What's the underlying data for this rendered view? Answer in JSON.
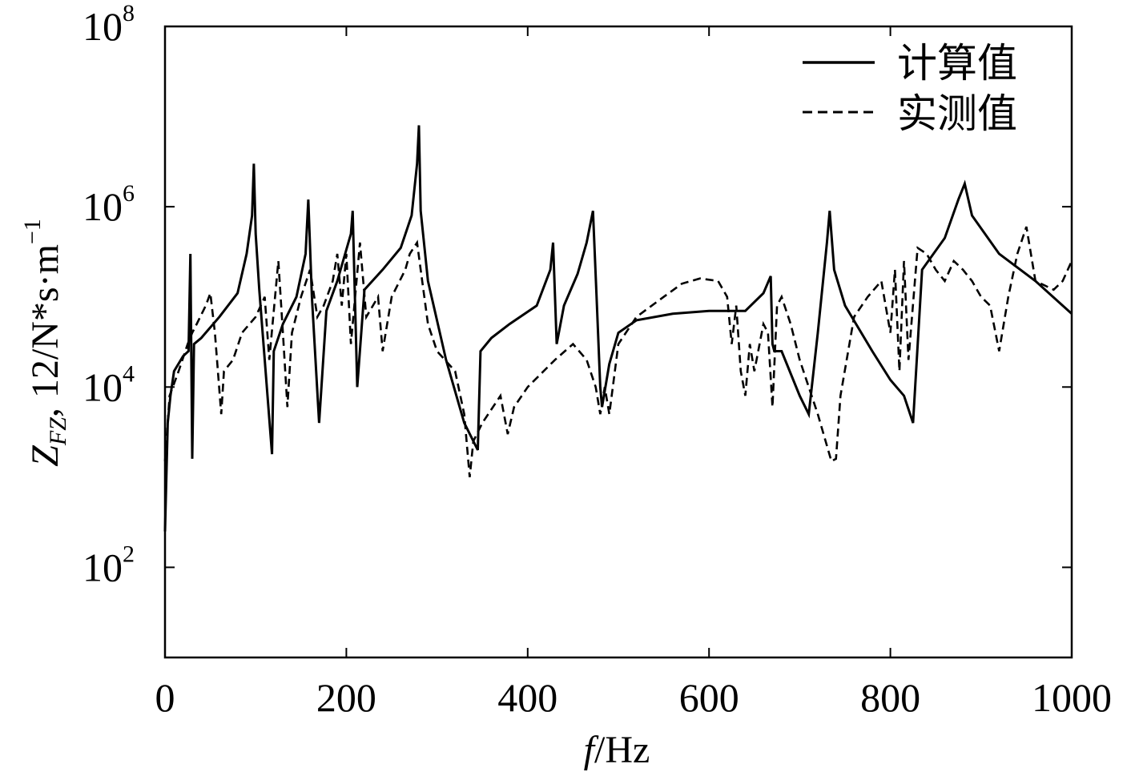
{
  "chart_data": {
    "type": "line",
    "title": "",
    "xlabel": {
      "italic": "f",
      "rest": "/Hz"
    },
    "ylabel": {
      "base": "Z",
      "sub": "FZ",
      "rest": ", 12/N*s·m",
      "sup": "−1"
    },
    "x_range": [
      0,
      1000
    ],
    "y_scale": "log",
    "y_range": [
      10,
      100000000
    ],
    "x_ticks": [
      "0",
      "200",
      "400",
      "600",
      "800",
      "1000"
    ],
    "y_ticks": [
      {
        "base": "10",
        "exp": "2"
      },
      {
        "base": "10",
        "exp": "4"
      },
      {
        "base": "10",
        "exp": "6"
      },
      {
        "base": "10",
        "exp": "8"
      }
    ],
    "legend_position": "top-right",
    "grid": false,
    "series": [
      {
        "name": "计算值",
        "style": "solid",
        "color": "#000000",
        "x": [
          0,
          3,
          6,
          10,
          20,
          26,
          28,
          30,
          32,
          40,
          60,
          80,
          90,
          96,
          98,
          100,
          104,
          110,
          118,
          120,
          130,
          145,
          155,
          158,
          162,
          170,
          178,
          190,
          205,
          207,
          212,
          220,
          240,
          260,
          272,
          278,
          280,
          282,
          290,
          310,
          330,
          345,
          348,
          360,
          380,
          410,
          425,
          428,
          432,
          440,
          455,
          465,
          472,
          476,
          480,
          482,
          490,
          500,
          520,
          560,
          600,
          640,
          660,
          668,
          670,
          672,
          680,
          700,
          710,
          720,
          730,
          733,
          738,
          750,
          780,
          800,
          815,
          825,
          835,
          860,
          875,
          882,
          890,
          920,
          960,
          1000
        ],
        "y": [
          250,
          4000,
          8000,
          15000,
          22000,
          25000,
          300000,
          1600,
          30000,
          35000,
          60000,
          110000,
          300000,
          800000,
          3000000,
          500000,
          120000,
          20000,
          1800,
          25000,
          50000,
          100000,
          300000,
          1200000,
          100000,
          4000,
          70000,
          150000,
          500000,
          900000,
          10000,
          120000,
          200000,
          350000,
          800000,
          3000000,
          8000000,
          900000,
          150000,
          20000,
          4000,
          2000,
          25000,
          35000,
          50000,
          80000,
          200000,
          400000,
          30000,
          80000,
          180000,
          400000,
          900000,
          100000,
          10000,
          6000,
          18000,
          40000,
          55000,
          65000,
          70000,
          70000,
          110000,
          170000,
          30000,
          25000,
          25000,
          8000,
          5000,
          40000,
          400000,
          900000,
          200000,
          80000,
          25000,
          12000,
          8000,
          4000,
          200000,
          450000,
          1200000,
          1800000,
          800000,
          300000,
          150000,
          65000
        ]
      },
      {
        "name": "实测值",
        "style": "dashed",
        "color": "#000000",
        "x": [
          0,
          5,
          15,
          25,
          30,
          35,
          45,
          50,
          55,
          62,
          65,
          75,
          85,
          100,
          110,
          115,
          125,
          130,
          135,
          140,
          150,
          160,
          168,
          175,
          185,
          190,
          195,
          200,
          205,
          215,
          222,
          235,
          240,
          250,
          265,
          270,
          278,
          282,
          290,
          300,
          320,
          330,
          336,
          340,
          350,
          370,
          378,
          385,
          400,
          430,
          450,
          465,
          475,
          480,
          485,
          490,
          500,
          520,
          550,
          570,
          590,
          610,
          620,
          625,
          630,
          635,
          640,
          645,
          650,
          660,
          665,
          670,
          675,
          680,
          690,
          700,
          720,
          735,
          740,
          745,
          760,
          775,
          790,
          800,
          805,
          810,
          815,
          820,
          830,
          840,
          850,
          860,
          870,
          880,
          890,
          900,
          910,
          920,
          930,
          940,
          950,
          960,
          980,
          990,
          1000
        ],
        "y": [
          1500,
          8000,
          15000,
          30000,
          40000,
          50000,
          80000,
          110000,
          40000,
          5000,
          15000,
          20000,
          40000,
          60000,
          100000,
          20000,
          250000,
          40000,
          6000,
          40000,
          100000,
          200000,
          60000,
          80000,
          150000,
          300000,
          80000,
          300000,
          30000,
          400000,
          60000,
          100000,
          25000,
          100000,
          200000,
          300000,
          400000,
          200000,
          50000,
          25000,
          15000,
          5000,
          1000,
          2500,
          4000,
          8000,
          3000,
          6000,
          10000,
          20000,
          30000,
          20000,
          10000,
          5000,
          10000,
          5000,
          30000,
          60000,
          100000,
          140000,
          160000,
          150000,
          100000,
          30000,
          80000,
          15000,
          8000,
          30000,
          15000,
          50000,
          40000,
          6000,
          80000,
          100000,
          50000,
          20000,
          5000,
          1500,
          1600,
          8000,
          60000,
          100000,
          150000,
          40000,
          200000,
          15000,
          250000,
          20000,
          350000,
          300000,
          200000,
          150000,
          250000,
          200000,
          150000,
          100000,
          80000,
          25000,
          100000,
          300000,
          600000,
          150000,
          120000,
          150000,
          250000
        ]
      }
    ]
  }
}
